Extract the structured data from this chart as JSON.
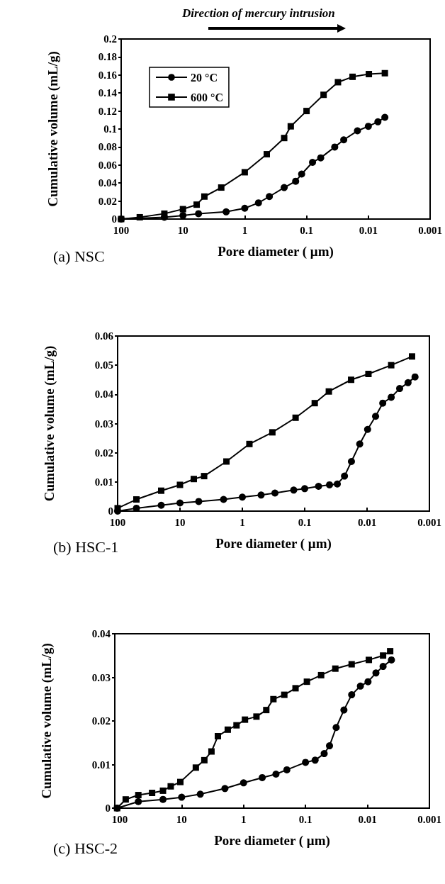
{
  "chart_data": [
    {
      "type": "line",
      "xlabel": "Pore diameter ( μm)",
      "ylabel": "Cumulative volume (mL/g)",
      "log": "x",
      "xlim": [
        100,
        0.001
      ],
      "xticks": [
        100,
        10,
        1,
        0.1,
        0.01,
        0.001
      ],
      "ylim": [
        0,
        0.2
      ],
      "yticks": [
        0,
        0.02,
        0.04,
        0.06,
        0.08,
        0.1,
        0.12,
        0.14,
        0.16,
        0.18,
        0.2
      ],
      "grid": false,
      "legend": "top left",
      "line_style": "solid",
      "annotations": [
        "Direction of mercury intrusion",
        "(a) NSC"
      ],
      "series": [
        {
          "name": "20 °C",
          "color": "#000000",
          "marker": "circle",
          "x": [
            100,
            20,
            10,
            5.6,
            2,
            1,
            0.6,
            0.4,
            0.23,
            0.15,
            0.12,
            0.08,
            0.059,
            0.035,
            0.025,
            0.015,
            0.01,
            0.007,
            0.0054
          ],
          "values": [
            0,
            0.002,
            0.004,
            0.006,
            0.008,
            0.012,
            0.018,
            0.025,
            0.035,
            0.042,
            0.05,
            0.063,
            0.068,
            0.08,
            0.088,
            0.098,
            0.103,
            0.108,
            0.113
          ]
        },
        {
          "name": "600 °C",
          "color": "#000000",
          "marker": "square",
          "x": [
            100,
            50,
            20,
            10,
            6,
            4.5,
            2.4,
            1,
            0.44,
            0.23,
            0.18,
            0.1,
            0.053,
            0.031,
            0.018,
            0.0098,
            0.0054
          ],
          "values": [
            0,
            0.002,
            0.006,
            0.011,
            0.016,
            0.025,
            0.035,
            0.052,
            0.072,
            0.09,
            0.103,
            0.12,
            0.138,
            0.152,
            0.158,
            0.161,
            0.162
          ]
        }
      ]
    },
    {
      "type": "line",
      "xlabel": "Pore diameter ( μm)",
      "ylabel": "Cumulative volume (mL/g)",
      "log": "x",
      "xlim": [
        100,
        0.001
      ],
      "xticks": [
        100,
        10,
        1,
        0.1,
        0.01,
        0.001
      ],
      "ylim": [
        0,
        0.06
      ],
      "yticks": [
        0,
        0.01,
        0.02,
        0.03,
        0.04,
        0.05,
        0.06
      ],
      "grid": false,
      "line_style": "solid",
      "annotations": [
        "(b) HSC-1"
      ],
      "series": [
        {
          "color": "#000000",
          "marker": "circle",
          "x": [
            100,
            50,
            20,
            10,
            5,
            2,
            1,
            0.5,
            0.3,
            0.15,
            0.1,
            0.06,
            0.04,
            0.03,
            0.023,
            0.0178,
            0.0131,
            0.0098,
            0.0073,
            0.0056,
            0.0041,
            0.003,
            0.0022,
            0.0017
          ],
          "values": [
            0,
            0.001,
            0.002,
            0.0028,
            0.0033,
            0.004,
            0.0048,
            0.0055,
            0.0062,
            0.0072,
            0.0077,
            0.0085,
            0.009,
            0.0093,
            0.012,
            0.017,
            0.023,
            0.028,
            0.0325,
            0.037,
            0.039,
            0.042,
            0.044,
            0.046
          ]
        },
        {
          "color": "#000000",
          "marker": "square",
          "x": [
            100,
            50,
            20,
            10,
            6,
            4.1,
            1.8,
            0.77,
            0.33,
            0.14,
            0.069,
            0.041,
            0.018,
            0.0095,
            0.0041,
            0.0019
          ],
          "values": [
            0.001,
            0.004,
            0.007,
            0.009,
            0.011,
            0.012,
            0.017,
            0.023,
            0.027,
            0.032,
            0.037,
            0.041,
            0.045,
            0.047,
            0.05,
            0.053
          ]
        }
      ]
    },
    {
      "type": "line",
      "xlabel": "Pore diameter ( μm)",
      "ylabel": "Cumulative volume (mL/g)",
      "log": "x",
      "xlim": [
        120,
        0.001
      ],
      "xticks": [
        100,
        10,
        1,
        0.1,
        0.01,
        0.001
      ],
      "ylim": [
        0,
        0.04
      ],
      "yticks": [
        0,
        0.01,
        0.02,
        0.03,
        0.04
      ],
      "grid": false,
      "line_style": "solid",
      "annotations": [
        "(c) HSC-2"
      ],
      "series": [
        {
          "color": "#000000",
          "marker": "circle",
          "x": [
            110,
            50,
            20,
            10,
            5,
            2,
            1,
            0.5,
            0.3,
            0.2,
            0.1,
            0.07,
            0.05,
            0.041,
            0.032,
            0.024,
            0.018,
            0.013,
            0.0098,
            0.0073,
            0.0056,
            0.0041
          ],
          "values": [
            0,
            0.0015,
            0.002,
            0.0025,
            0.0032,
            0.0045,
            0.0058,
            0.007,
            0.0078,
            0.0088,
            0.0105,
            0.011,
            0.0125,
            0.0143,
            0.0185,
            0.0225,
            0.026,
            0.028,
            0.029,
            0.031,
            0.0325,
            0.034
          ]
        },
        {
          "color": "#000000",
          "marker": "square",
          "x": [
            110,
            80,
            50,
            30,
            20,
            15,
            10.5,
            5.9,
            4.3,
            3.3,
            2.6,
            1.8,
            1.3,
            0.95,
            0.62,
            0.43,
            0.33,
            0.22,
            0.145,
            0.095,
            0.056,
            0.033,
            0.018,
            0.0095,
            0.0056,
            0.0043
          ],
          "values": [
            0,
            0.002,
            0.003,
            0.0035,
            0.004,
            0.005,
            0.006,
            0.0093,
            0.011,
            0.013,
            0.0165,
            0.018,
            0.019,
            0.0203,
            0.021,
            0.0225,
            0.025,
            0.026,
            0.0275,
            0.029,
            0.0305,
            0.032,
            0.033,
            0.034,
            0.035,
            0.036
          ]
        }
      ]
    }
  ]
}
